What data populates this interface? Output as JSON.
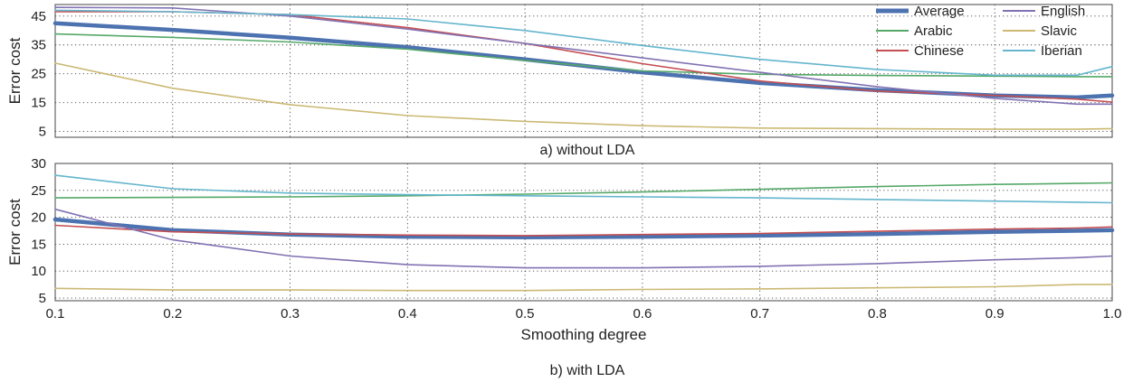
{
  "chart_data": [
    {
      "type": "line",
      "caption": "a) without LDA",
      "ylabel": "Error cost",
      "xlabel": "",
      "xlim": [
        0.1,
        1.0
      ],
      "ylim": [
        3,
        49
      ],
      "x_ticks": [
        "0.1",
        "0.2",
        "0.3",
        "0.4",
        "0.5",
        "0.6",
        "0.7",
        "0.8",
        "0.9",
        "1.0"
      ],
      "y_ticks": [
        "5",
        "15",
        "25",
        "35",
        "45"
      ],
      "show_x_tick_labels": false,
      "grid": true,
      "legend": {
        "position": "top-right",
        "columns": 2
      },
      "x": [
        0.1,
        0.2,
        0.3,
        0.4,
        0.5,
        0.6,
        0.7,
        0.8,
        0.9,
        0.97,
        1.0
      ],
      "series": [
        {
          "name": "Average",
          "color": "#4c72b0",
          "width": 4.5,
          "values": [
            42.5,
            40.2,
            37.5,
            34.2,
            30.0,
            25.5,
            21.8,
            19.3,
            17.5,
            16.8,
            17.5
          ]
        },
        {
          "name": "Arabic",
          "color": "#55a868",
          "width": 1.6,
          "values": [
            38.8,
            37.6,
            36.0,
            33.5,
            29.6,
            26.0,
            24.8,
            24.4,
            24.2,
            24.0,
            24.0
          ]
        },
        {
          "name": "Chinese",
          "color": "#c44e52",
          "width": 1.6,
          "values": [
            46.5,
            46.5,
            45.5,
            41.0,
            35.5,
            28.5,
            22.5,
            19.0,
            17.5,
            16.2,
            15.2
          ]
        },
        {
          "name": "English",
          "color": "#8172b2",
          "width": 1.6,
          "values": [
            48.0,
            47.8,
            45.0,
            40.5,
            35.5,
            30.5,
            25.5,
            20.5,
            16.5,
            14.5,
            14.5
          ]
        },
        {
          "name": "Slavic",
          "color": "#ccb974",
          "width": 1.6,
          "values": [
            28.7,
            20.0,
            14.3,
            10.5,
            8.5,
            7.0,
            6.2,
            6.0,
            5.8,
            5.8,
            6.0
          ]
        },
        {
          "name": "Iberian",
          "color": "#64b5cd",
          "width": 1.6,
          "values": [
            47.0,
            46.5,
            45.5,
            44.0,
            40.0,
            34.8,
            30.0,
            26.5,
            24.5,
            24.5,
            27.5
          ]
        }
      ]
    },
    {
      "type": "line",
      "caption": "b) with LDA",
      "ylabel": "Error cost",
      "xlabel": "Smoothing degree",
      "xlim": [
        0.1,
        1.0
      ],
      "ylim": [
        4.5,
        30
      ],
      "x_ticks": [
        "0.1",
        "0.2",
        "0.3",
        "0.4",
        "0.5",
        "0.6",
        "0.7",
        "0.8",
        "0.9",
        "1.0"
      ],
      "y_ticks": [
        "5",
        "10",
        "15",
        "20",
        "25",
        "30"
      ],
      "show_x_tick_labels": true,
      "grid": true,
      "x": [
        0.1,
        0.2,
        0.3,
        0.4,
        0.5,
        0.6,
        0.7,
        0.8,
        0.9,
        0.97,
        1.0
      ],
      "series": [
        {
          "name": "Average",
          "color": "#4c72b0",
          "width": 4.5,
          "values": [
            19.6,
            17.6,
            16.8,
            16.4,
            16.3,
            16.4,
            16.6,
            16.9,
            17.3,
            17.5,
            17.6
          ]
        },
        {
          "name": "Arabic",
          "color": "#55a868",
          "width": 1.6,
          "values": [
            23.6,
            23.7,
            23.8,
            24.0,
            24.3,
            24.7,
            25.2,
            25.7,
            26.1,
            26.3,
            26.4
          ]
        },
        {
          "name": "Chinese",
          "color": "#c44e52",
          "width": 1.6,
          "values": [
            18.5,
            17.3,
            16.9,
            16.7,
            16.6,
            16.8,
            17.0,
            17.4,
            17.8,
            18.0,
            18.2
          ]
        },
        {
          "name": "English",
          "color": "#8172b2",
          "width": 1.6,
          "values": [
            21.5,
            15.8,
            12.8,
            11.2,
            10.6,
            10.6,
            10.9,
            11.4,
            12.1,
            12.5,
            12.8
          ]
        },
        {
          "name": "Slavic",
          "color": "#ccb974",
          "width": 1.6,
          "values": [
            6.8,
            6.5,
            6.5,
            6.4,
            6.4,
            6.6,
            6.7,
            6.9,
            7.1,
            7.5,
            7.5
          ]
        },
        {
          "name": "Iberian",
          "color": "#64b5cd",
          "width": 1.6,
          "values": [
            27.8,
            25.3,
            24.5,
            24.2,
            24.0,
            23.8,
            23.6,
            23.3,
            23.0,
            22.8,
            22.7
          ]
        }
      ]
    }
  ]
}
